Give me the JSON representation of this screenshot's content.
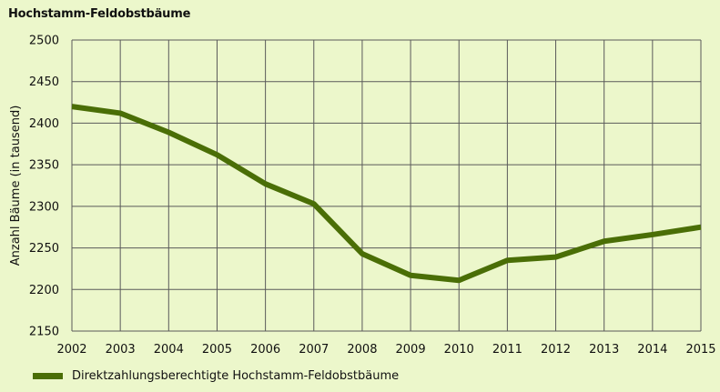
{
  "chart_data": {
    "type": "line",
    "title": "Hochstamm-Feldobstbäume",
    "xlabel": "",
    "ylabel": "Anzahl Bäume (in tausend)",
    "x": [
      "2002",
      "2003",
      "2004",
      "2005",
      "2006",
      "2007",
      "2008",
      "2009",
      "2010",
      "2011",
      "2012",
      "2013",
      "2014",
      "2015"
    ],
    "series": [
      {
        "name": "Direktzahlungsberechtigte Hochstamm-Feldobstbäume",
        "values": [
          2420,
          2412,
          2389,
          2362,
          2327,
          2303,
          2243,
          2217,
          2211,
          2235,
          2239,
          2258,
          2266,
          2275
        ],
        "color": "#4a6e06"
      }
    ],
    "ylim": [
      2150,
      2500
    ],
    "yticks": [
      "2150",
      "2200",
      "2250",
      "2300",
      "2350",
      "2400",
      "2450",
      "2500"
    ],
    "grid": true,
    "legend": "bottom-left",
    "background_color": "#ecf7cb",
    "grid_color": "#5a5a5a"
  }
}
